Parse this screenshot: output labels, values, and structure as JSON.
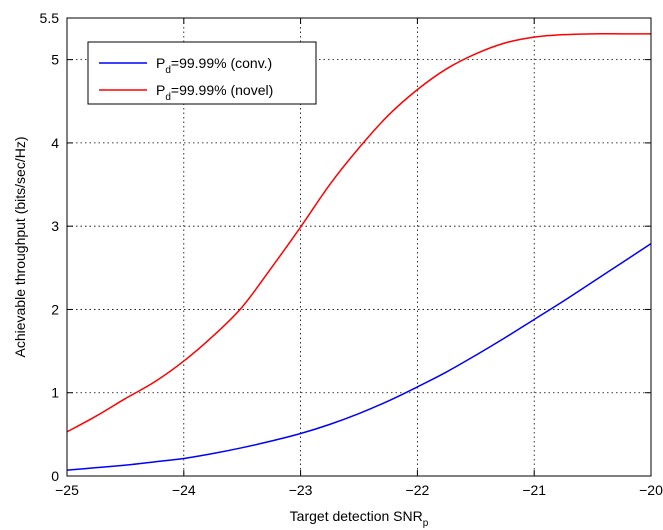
{
  "chart_data": {
    "type": "line",
    "title": "",
    "xlabel": "Target detection SNR",
    "xlabel_subscript": "p",
    "ylabel": "Achievable throughput (bits/sec/Hz)",
    "xlim": [
      -25,
      -20
    ],
    "ylim": [
      0,
      5.5
    ],
    "x_ticks": [
      -25,
      -24,
      -23,
      -22,
      -21,
      -20
    ],
    "y_ticks": [
      0,
      1,
      2,
      3,
      4,
      5,
      5.5
    ],
    "x_tick_labels": [
      "−25",
      "−24",
      "−23",
      "−22",
      "−21",
      "−20"
    ],
    "y_tick_labels": [
      "0",
      "1",
      "2",
      "3",
      "4",
      "5",
      "5.5"
    ],
    "grid": true,
    "legend_position": "top-left",
    "series": [
      {
        "legend_main": "P",
        "legend_sub": "d",
        "legend_rest": "=99.99% (conv.)",
        "color": "#0000ff",
        "x": [
          -25,
          -24.75,
          -24.5,
          -24.25,
          -24,
          -23.75,
          -23.5,
          -23.25,
          -23,
          -22.75,
          -22.5,
          -22.25,
          -22,
          -21.75,
          -21.5,
          -21.25,
          -21,
          -20.75,
          -20.5,
          -20.25,
          -20
        ],
        "y": [
          0.07,
          0.1,
          0.13,
          0.17,
          0.21,
          0.27,
          0.34,
          0.42,
          0.51,
          0.62,
          0.75,
          0.9,
          1.07,
          1.25,
          1.45,
          1.66,
          1.88,
          2.1,
          2.33,
          2.56,
          2.79
        ]
      },
      {
        "legend_main": "P",
        "legend_sub": "d",
        "legend_rest": "=99.99% (novel)",
        "color": "#ff0000",
        "x": [
          -25,
          -24.75,
          -24.5,
          -24.25,
          -24,
          -23.75,
          -23.5,
          -23.25,
          -23,
          -22.75,
          -22.5,
          -22.25,
          -22,
          -21.75,
          -21.5,
          -21.25,
          -21,
          -20.75,
          -20.5,
          -20.25,
          -20
        ],
        "y": [
          0.53,
          0.72,
          0.93,
          1.13,
          1.38,
          1.68,
          2.03,
          2.5,
          2.99,
          3.5,
          3.94,
          4.33,
          4.64,
          4.89,
          5.07,
          5.2,
          5.27,
          5.3,
          5.31,
          5.31,
          5.31
        ]
      }
    ]
  }
}
